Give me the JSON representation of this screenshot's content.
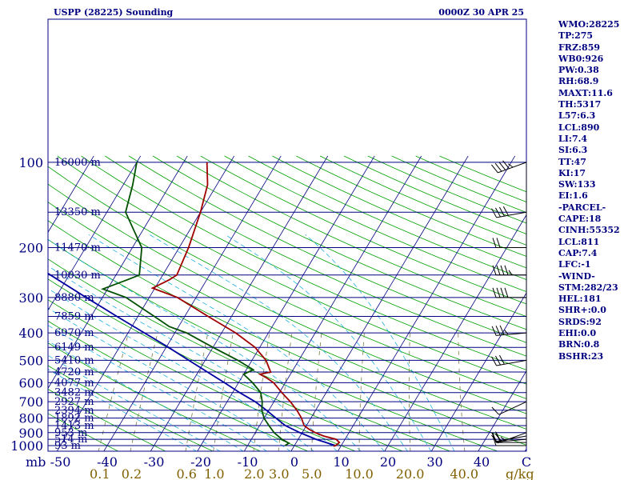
{
  "header": {
    "title": "USPP (28225) Sounding",
    "time": "0000Z 30 APR 25"
  },
  "stats": [
    "WMO:28225",
    "TP:275",
    "FRZ:859",
    "WB0:926",
    "PW:0.38",
    "RH:68.9",
    "MAXT:11.6",
    "TH:5317",
    "L57:6.3",
    "LCL:890",
    "LI:7.4",
    "SI:6.3",
    "TT:47",
    "KI:17",
    "SW:133",
    "EI:1.6",
    "-PARCEL-",
    "CAPE:18",
    "CINH:55352",
    "LCL:811",
    "CAP:7.4",
    "LFC:-1",
    "-WIND-",
    "STM:282/23",
    "HEL:181",
    "SHR+:0.0",
    "SRDS:92",
    "EHI:0.0",
    "BRN:0.8",
    "BSHR:23"
  ],
  "colors": {
    "isobar": "#000080",
    "isotherm": "#000080",
    "dry_adiabat": "#00a000",
    "moist_adiabat": "#22b0e0",
    "mixing_ratio": "#7a7a40",
    "temperature": "#a00000",
    "dewpoint": "#005000",
    "parcel": "#0000a0",
    "axis_text": "#000080",
    "mixing_text": "#806000"
  },
  "chart_data": {
    "type": "skew-t",
    "pressure_axis_label": "mb",
    "pressure_ticks": [
      100,
      200,
      300,
      400,
      500,
      600,
      700,
      800,
      900,
      1000
    ],
    "temperature_axis_label": "C",
    "temperature_ticks": [
      -50,
      -40,
      -30,
      -20,
      -10,
      0,
      10,
      20,
      30,
      40
    ],
    "mixing_ratio_label": "g/kg",
    "mixing_ratio_ticks": [
      "0.1",
      "0.2",
      "0.6",
      "1.0",
      "2.0",
      "3.0",
      "5.0",
      "10.0",
      "20.0",
      "40.0"
    ],
    "mixing_ratio_values": [
      0.1,
      0.2,
      0.6,
      1.0,
      2.0,
      3.0,
      5.0,
      10.0,
      20.0,
      40.0
    ],
    "heights": [
      {
        "p": 100,
        "label": "16000 m"
      },
      {
        "p": 150,
        "label": "13350 m"
      },
      {
        "p": 200,
        "label": "11470 m"
      },
      {
        "p": 250,
        "label": "10030 m"
      },
      {
        "p": 300,
        "label": "8880 m"
      },
      {
        "p": 350,
        "label": "7859 m"
      },
      {
        "p": 400,
        "label": "6970 m"
      },
      {
        "p": 450,
        "label": "6149 m"
      },
      {
        "p": 500,
        "label": "5410 m"
      },
      {
        "p": 550,
        "label": "4720 m"
      },
      {
        "p": 600,
        "label": "4077 m"
      },
      {
        "p": 650,
        "label": "3482 m"
      },
      {
        "p": 700,
        "label": "2927 m"
      },
      {
        "p": 750,
        "label": "2394 m"
      },
      {
        "p": 800,
        "label": "1892 m"
      },
      {
        "p": 850,
        "label": "1413 m"
      },
      {
        "p": 900,
        "label": "953 m"
      },
      {
        "p": 950,
        "label": "514 m"
      },
      {
        "p": 1000,
        "label": "93 m"
      }
    ],
    "temperature_profile": [
      [
        1005,
        8.4
      ],
      [
        1000,
        8.8
      ],
      [
        975,
        9.2
      ],
      [
        950,
        8.1
      ],
      [
        925,
        5.0
      ],
      [
        900,
        2.8
      ],
      [
        875,
        1.0
      ],
      [
        850,
        -0.5
      ],
      [
        800,
        -2.0
      ],
      [
        750,
        -4.0
      ],
      [
        700,
        -6.5
      ],
      [
        650,
        -9.5
      ],
      [
        600,
        -12.5
      ],
      [
        575,
        -14.8
      ],
      [
        560,
        -16.5
      ],
      [
        550,
        -14.5
      ],
      [
        500,
        -17.0
      ],
      [
        450,
        -21.0
      ],
      [
        400,
        -27.0
      ],
      [
        350,
        -35.0
      ],
      [
        300,
        -44.0
      ],
      [
        278,
        -50.5
      ],
      [
        260,
        -48.0
      ],
      [
        250,
        -47.0
      ],
      [
        200,
        -48.0
      ],
      [
        150,
        -50.0
      ],
      [
        120,
        -52.0
      ],
      [
        100,
        -55.0
      ]
    ],
    "dewpoint_profile": [
      [
        1000,
        -2.0
      ],
      [
        980,
        -1.5
      ],
      [
        950,
        -3.5
      ],
      [
        900,
        -6.0
      ],
      [
        850,
        -8.0
      ],
      [
        800,
        -10.0
      ],
      [
        750,
        -11.5
      ],
      [
        700,
        -12.5
      ],
      [
        650,
        -14.0
      ],
      [
        600,
        -17.0
      ],
      [
        560,
        -20.0
      ],
      [
        540,
        -18.5
      ],
      [
        500,
        -23.0
      ],
      [
        450,
        -30.0
      ],
      [
        400,
        -37.5
      ],
      [
        380,
        -42.0
      ],
      [
        350,
        -46.5
      ],
      [
        300,
        -55.0
      ],
      [
        280,
        -61.0
      ],
      [
        260,
        -57.0
      ],
      [
        250,
        -55.0
      ],
      [
        200,
        -58.0
      ],
      [
        150,
        -66.0
      ],
      [
        120,
        -68.0
      ],
      [
        100,
        -70.0
      ]
    ],
    "parcel_profile": [
      [
        1000,
        8.8
      ],
      [
        950,
        3.8
      ],
      [
        900,
        -0.5
      ],
      [
        850,
        -4.5
      ],
      [
        811,
        -6.8
      ],
      [
        750,
        -10.5
      ],
      [
        700,
        -14.0
      ],
      [
        650,
        -18.5
      ],
      [
        600,
        -23.0
      ],
      [
        550,
        -28.0
      ],
      [
        500,
        -33.5
      ],
      [
        450,
        -39.5
      ],
      [
        400,
        -46.5
      ],
      [
        350,
        -54.5
      ],
      [
        300,
        -63.5
      ],
      [
        250,
        -74.0
      ],
      [
        200,
        -86.0
      ],
      [
        150,
        -100.0
      ],
      [
        120,
        -108.0
      ]
    ],
    "wind_barbs": [
      {
        "p": 1000,
        "dir": 270,
        "kt": 10
      },
      {
        "p": 975,
        "dir": 270,
        "kt": 10
      },
      {
        "p": 950,
        "dir": 265,
        "kt": 20
      },
      {
        "p": 925,
        "dir": 260,
        "kt": 20
      },
      {
        "p": 900,
        "dir": 250,
        "kt": 25
      },
      {
        "p": 700,
        "dir": 245,
        "kt": 10
      },
      {
        "p": 500,
        "dir": 260,
        "kt": 30
      },
      {
        "p": 400,
        "dir": 265,
        "kt": 35
      },
      {
        "p": 300,
        "dir": 270,
        "kt": 40
      },
      {
        "p": 250,
        "dir": 270,
        "kt": 45
      },
      {
        "p": 200,
        "dir": 270,
        "kt": 20
      },
      {
        "p": 150,
        "dir": 260,
        "kt": 40
      },
      {
        "p": 100,
        "dir": 250,
        "kt": 45
      }
    ]
  }
}
